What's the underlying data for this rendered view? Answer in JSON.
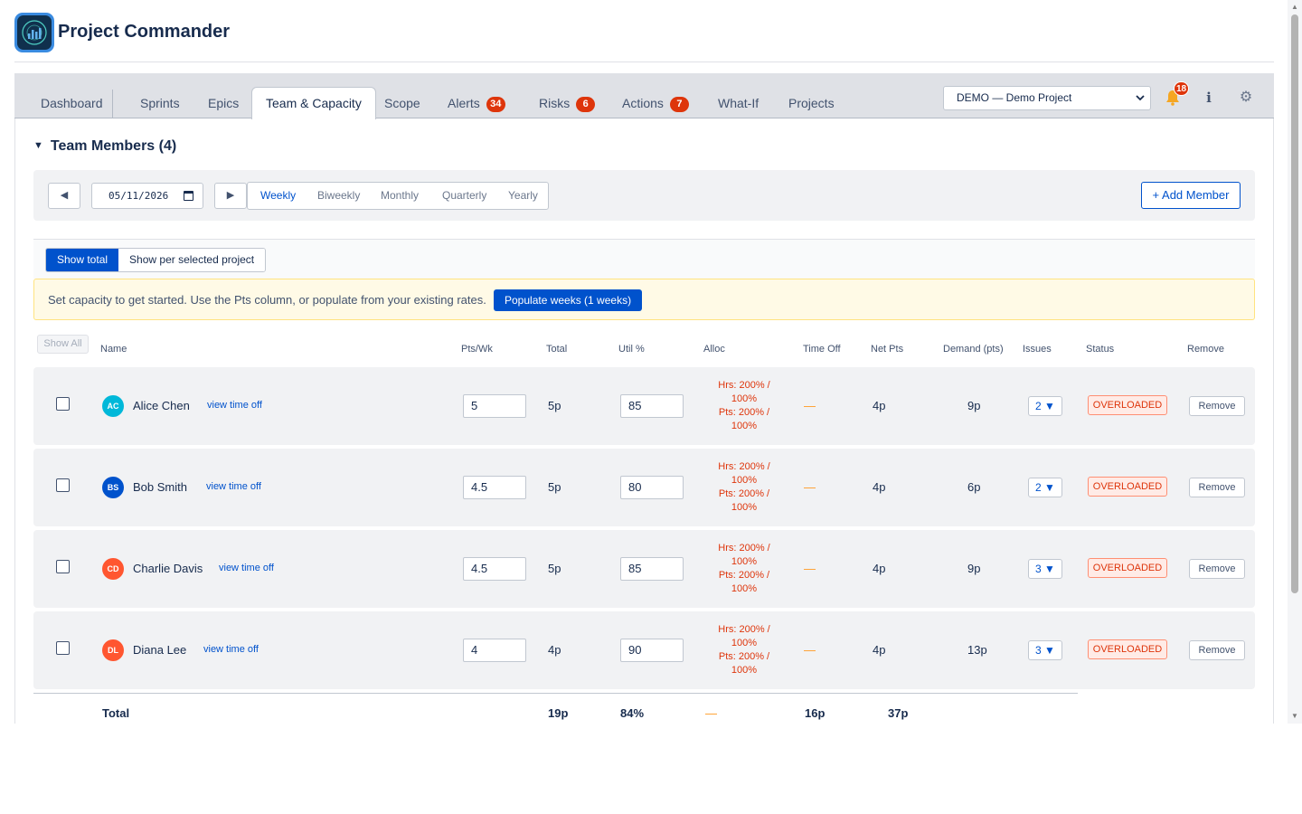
{
  "app": {
    "title": "Project Commander"
  },
  "nav": {
    "tabs": [
      {
        "label": "Dashboard"
      },
      {
        "label": "Sprints"
      },
      {
        "label": "Epics"
      },
      {
        "label": "Team & Capacity",
        "active": true
      },
      {
        "label": "Scope"
      },
      {
        "label": "Alerts",
        "badge": "34"
      },
      {
        "label": "Risks",
        "badge": "6"
      },
      {
        "label": "Actions",
        "badge": "7"
      },
      {
        "label": "What-If"
      },
      {
        "label": "Projects"
      }
    ],
    "project_select": "DEMO — Demo Project",
    "notifications_count": "18",
    "icons": {
      "notifications": "bell-icon",
      "info": "info-icon",
      "settings": "gear-icon"
    }
  },
  "section": {
    "title": "Team Members (4)",
    "toggle_icon": "triangle-down-icon"
  },
  "controls": {
    "date": "05/11/2026",
    "periods": [
      "Weekly",
      "Biweekly",
      "Monthly",
      "Quarterly",
      "Yearly"
    ],
    "active_period": "Weekly",
    "add_member": "+ Add Member"
  },
  "view_toggle": {
    "total": "Show total",
    "per_project": "Show per selected project",
    "active": "Show total"
  },
  "notice": {
    "text": "Set capacity to get started. Use the Pts column, or populate from your existing rates.",
    "button": "Populate weeks (1 weeks)"
  },
  "table": {
    "show_all": "Show All",
    "headers": {
      "name": "Name",
      "pts_wk": "Pts/Wk",
      "total": "Total",
      "util": "Util %",
      "alloc": "Alloc",
      "time_off": "Time Off",
      "net_pts": "Net Pts",
      "demand": "Demand (pts)",
      "issues": "Issues",
      "status": "Status",
      "remove": "Remove"
    },
    "rows": [
      {
        "initials": "AC",
        "name": "Alice Chen",
        "time_off_link": "view time off",
        "pts_wk": "5",
        "total": "5p",
        "util": "85",
        "alloc_hrs": "Hrs: 200% / 100%",
        "alloc_pts": "Pts: 200% / 100%",
        "time_off": "—",
        "net_pts": "4p",
        "demand": "9p",
        "issues": "2 ▼",
        "status": "OVERLOADED",
        "remove": "Remove",
        "avatar_color": "#00b8d9"
      },
      {
        "initials": "BS",
        "name": "Bob Smith",
        "time_off_link": "view time off",
        "pts_wk": "4.5",
        "total": "5p",
        "util": "80",
        "alloc_hrs": "Hrs: 200% / 100%",
        "alloc_pts": "Pts: 200% / 100%",
        "time_off": "—",
        "net_pts": "4p",
        "demand": "6p",
        "issues": "2 ▼",
        "status": "OVERLOADED",
        "remove": "Remove",
        "avatar_color": "#0052cc"
      },
      {
        "initials": "CD",
        "name": "Charlie Davis",
        "time_off_link": "view time off",
        "pts_wk": "4.5",
        "total": "5p",
        "util": "85",
        "alloc_hrs": "Hrs: 200% / 100%",
        "alloc_pts": "Pts: 200% / 100%",
        "time_off": "—",
        "net_pts": "4p",
        "demand": "9p",
        "issues": "3 ▼",
        "status": "OVERLOADED",
        "remove": "Remove",
        "avatar_color": "#ff5630"
      },
      {
        "initials": "DL",
        "name": "Diana Lee",
        "time_off_link": "view time off",
        "pts_wk": "4",
        "total": "4p",
        "util": "90",
        "alloc_hrs": "Hrs: 200% / 100%",
        "alloc_pts": "Pts: 200% / 100%",
        "time_off": "—",
        "net_pts": "4p",
        "demand": "13p",
        "issues": "3 ▼",
        "status": "OVERLOADED",
        "remove": "Remove",
        "avatar_color": "#ff5630"
      }
    ],
    "totals": {
      "label": "Total",
      "total": "19p",
      "util": "84%",
      "alloc": "—",
      "net_pts": "16p",
      "demand": "37p"
    }
  },
  "colors": {
    "accent": "#0052cc",
    "danger": "#de350b",
    "warning_bg": "#fffae6",
    "dash": "#ff991f"
  }
}
